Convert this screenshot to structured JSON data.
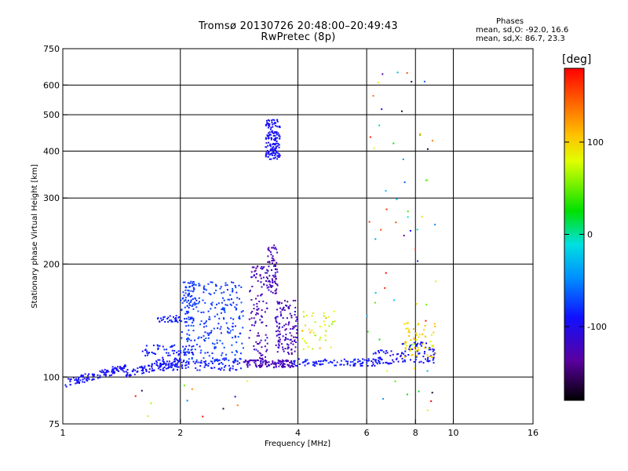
{
  "header": {
    "title_line1": "Tromsø 20130726 20:48:00–20:49:43",
    "title_line2": "RwPretec (8p)",
    "stats_heading": "Phases",
    "stats_o": "mean, sd,O: -92.0, 16.6",
    "stats_x": "mean, sd,X:  86.7, 23.3"
  },
  "colorbar": {
    "title": "[deg]",
    "range": [
      -180,
      180
    ],
    "tick_values": [
      100,
      0,
      -100
    ],
    "tick_labels": [
      "100",
      "0",
      "-100"
    ]
  },
  "chart_data": {
    "type": "scatter",
    "xlabel": "Frequency [MHz]",
    "ylabel": "Stationary phase Virtual Height [km]",
    "xscale": "log",
    "yscale": "log",
    "xlim": [
      1,
      16
    ],
    "ylim": [
      75,
      750
    ],
    "xticks": [
      1,
      2,
      4,
      6,
      8,
      10,
      16
    ],
    "xtick_labels": [
      "1",
      "2",
      "4",
      "6",
      "8",
      "10",
      "16"
    ],
    "yticks": [
      75,
      100,
      200,
      300,
      400,
      500,
      600,
      750
    ],
    "ytick_labels": [
      "75",
      "100",
      "200",
      "300",
      "400",
      "500",
      "600",
      "750"
    ],
    "xgrid": [
      2,
      4,
      6,
      8,
      10
    ],
    "ygrid": [
      100,
      200,
      300,
      400,
      500,
      600
    ],
    "clusters": [
      {
        "f": [
          1.0,
          1.45
        ],
        "h": [
          96,
          106
        ],
        "phase": [
          -115,
          -100
        ],
        "n": 120,
        "shape": "rise"
      },
      {
        "f": [
          1.45,
          2.0
        ],
        "h": [
          102,
          110
        ],
        "phase": [
          -115,
          -100
        ],
        "n": 90,
        "shape": "rise"
      },
      {
        "f": [
          1.7,
          2.9
        ],
        "h": [
          104,
          112
        ],
        "phase": [
          -110,
          -95
        ],
        "n": 110,
        "shape": "flat"
      },
      {
        "f": [
          1.6,
          2.2
        ],
        "h": [
          112,
          122
        ],
        "phase": [
          -110,
          -95
        ],
        "n": 60,
        "shape": "flat"
      },
      {
        "f": [
          1.75,
          2.0
        ],
        "h": [
          140,
          146
        ],
        "phase": [
          -110,
          -95
        ],
        "n": 30,
        "shape": "flat"
      },
      {
        "f": [
          2.0,
          2.9
        ],
        "h": [
          110,
          180
        ],
        "phase": [
          -100,
          -80
        ],
        "n": 260,
        "shape": "box"
      },
      {
        "f": [
          2.05,
          2.2
        ],
        "h": [
          140,
          180
        ],
        "phase": [
          -100,
          -85
        ],
        "n": 60,
        "shape": "box"
      },
      {
        "f": [
          2.9,
          3.9
        ],
        "h": [
          106,
          111
        ],
        "phase": [
          -140,
          -120
        ],
        "n": 120,
        "shape": "flat"
      },
      {
        "f": [
          3.0,
          3.35
        ],
        "h": [
          111,
          200
        ],
        "phase": [
          -140,
          -120
        ],
        "n": 110,
        "shape": "box"
      },
      {
        "f": [
          3.35,
          3.55
        ],
        "h": [
          165,
          225
        ],
        "phase": [
          -140,
          -120
        ],
        "n": 70,
        "shape": "box"
      },
      {
        "f": [
          3.5,
          4.0
        ],
        "h": [
          115,
          160
        ],
        "phase": [
          -140,
          -120
        ],
        "n": 120,
        "shape": "box"
      },
      {
        "f": [
          3.3,
          3.6
        ],
        "h": [
          380,
          485
        ],
        "phase": [
          -115,
          -100
        ],
        "n": 150,
        "shape": "box"
      },
      {
        "f": [
          3.9,
          6.5
        ],
        "h": [
          107,
          112
        ],
        "phase": [
          -110,
          -95
        ],
        "n": 100,
        "shape": "flat"
      },
      {
        "f": [
          4.1,
          5.0
        ],
        "h": [
          118,
          150
        ],
        "phase": [
          50,
          120
        ],
        "n": 40,
        "shape": "box"
      },
      {
        "f": [
          6.2,
          7.6
        ],
        "h": [
          108,
          118
        ],
        "phase": [
          -120,
          -100
        ],
        "n": 50,
        "shape": "flat"
      },
      {
        "f": [
          7.4,
          9.0
        ],
        "h": [
          109,
          125
        ],
        "phase": [
          -115,
          -100
        ],
        "n": 60,
        "shape": "flat"
      },
      {
        "f": [
          7.5,
          9.0
        ],
        "h": [
          112,
          140
        ],
        "phase": [
          70,
          120
        ],
        "n": 60,
        "shape": "box"
      },
      {
        "f": [
          6.0,
          9.2
        ],
        "h": [
          80,
          700
        ],
        "phase": [
          -180,
          180
        ],
        "n": 60,
        "shape": "box"
      },
      {
        "f": [
          1.5,
          3.0
        ],
        "h": [
          78,
          100
        ],
        "phase": [
          -180,
          180
        ],
        "n": 12,
        "shape": "box"
      }
    ]
  }
}
